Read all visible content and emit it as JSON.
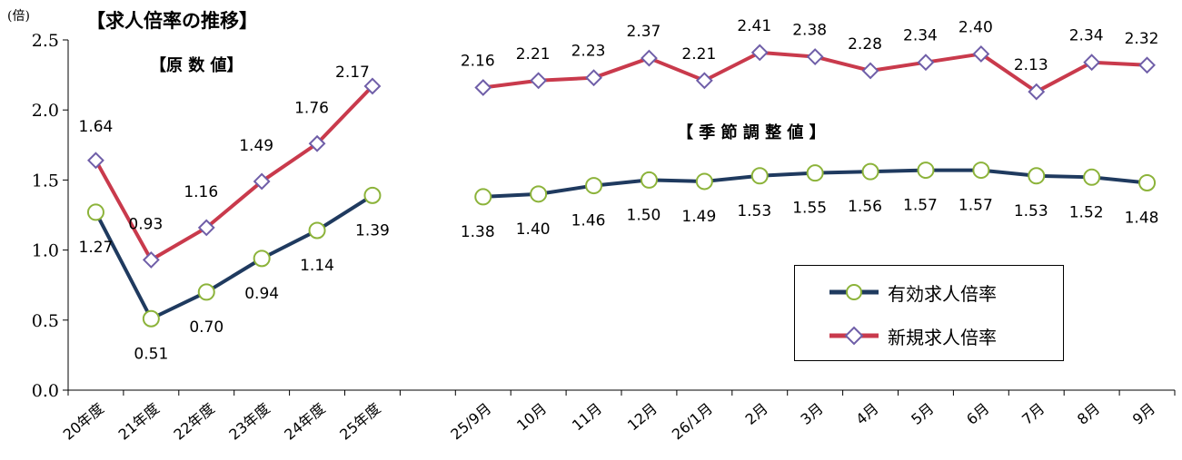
{
  "title": "【求人倍率の推移】",
  "unit": "(倍)",
  "panel_left_label": "【原 数 値】",
  "panel_right_label": "【 季 節 調 整 値 】",
  "legend": {
    "series1": "有効求人倍率",
    "series2": "新規求人倍率"
  },
  "colors": {
    "yuko_line": "#1f3a5f",
    "yuko_marker": "#8cb33a",
    "shinki_line": "#c93a4c",
    "shinki_marker": "#6f5ea8"
  },
  "chart_data": {
    "type": "line",
    "yaxis": {
      "min": 0.0,
      "max": 2.5,
      "ticks": [
        "0.0",
        "0.5",
        "1.0",
        "1.5",
        "2.0",
        "2.5"
      ]
    },
    "categories_annual": [
      "20年度",
      "21年度",
      "22年度",
      "23年度",
      "24年度",
      "25年度"
    ],
    "categories_monthly": [
      "25/9月",
      "10月",
      "11月",
      "12月",
      "26/1月",
      "2月",
      "3月",
      "4月",
      "5月",
      "6月",
      "7月",
      "8月",
      "9月"
    ],
    "series": [
      {
        "name": "有効求人倍率",
        "annual": [
          1.27,
          0.51,
          0.7,
          0.94,
          1.14,
          1.39
        ],
        "annual_labels": [
          "1.27",
          "0.51",
          "0.70",
          "0.94",
          "1.14",
          "1.39"
        ],
        "monthly": [
          1.38,
          1.4,
          1.46,
          1.5,
          1.49,
          1.53,
          1.55,
          1.56,
          1.57,
          1.57,
          1.53,
          1.52,
          1.48
        ],
        "monthly_labels": [
          "1.38",
          "1.40",
          "1.46",
          "1.50",
          "1.49",
          "1.53",
          "1.55",
          "1.56",
          "1.57",
          "1.57",
          "1.53",
          "1.52",
          "1.48"
        ]
      },
      {
        "name": "新規求人倍率",
        "annual": [
          1.64,
          0.93,
          1.16,
          1.49,
          1.76,
          2.17
        ],
        "annual_labels": [
          "1.64",
          "0.93",
          "1.16",
          "1.49",
          "1.76",
          "2.17"
        ],
        "monthly": [
          2.16,
          2.21,
          2.23,
          2.37,
          2.21,
          2.41,
          2.38,
          2.28,
          2.34,
          2.4,
          2.13,
          2.34,
          2.32
        ],
        "monthly_labels": [
          "2.16",
          "2.21",
          "2.23",
          "2.37",
          "2.21",
          "2.41",
          "2.38",
          "2.28",
          "2.34",
          "2.40",
          "2.13",
          "2.34",
          "2.32"
        ]
      }
    ]
  }
}
